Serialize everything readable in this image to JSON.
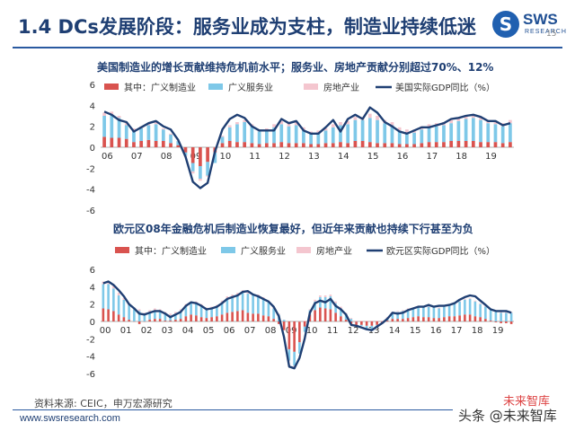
{
  "slide": {
    "title": "1.4 DCs发展阶段：服务业成为支柱，制造业持续低迷",
    "logo_text": "SWS",
    "logo_sub": "RESEARCH",
    "source": "资料来源: CEIC，申万宏源研究",
    "website": "www.swsresearch.com",
    "page_number": "15",
    "wechat_tag": "未来智库",
    "watermark": "头条 @未来智库"
  },
  "colors": {
    "manufacturing": "#d9534f",
    "services": "#7ec8e8",
    "realestate": "#f4c6cf",
    "gdp": "#1f3f73",
    "title": "#1f3f73"
  },
  "chart_data": [
    {
      "type": "bar",
      "stacked": true,
      "title": "美国制造业的增长贡献维持危机前水平；服务业、房地产贡献分别超过70%、12%",
      "x_tick_labels": [
        "06",
        "07",
        "08",
        "09",
        "10",
        "11",
        "12",
        "13",
        "14",
        "15",
        "16",
        "17",
        "18",
        "19"
      ],
      "ylim": [
        -6,
        6
      ],
      "y_ticks": [
        -6,
        -4,
        -2,
        0,
        2,
        4,
        6
      ],
      "legend_position": "top",
      "x": [
        2006.0,
        2006.25,
        2006.5,
        2006.75,
        2007.0,
        2007.25,
        2007.5,
        2007.75,
        2008.0,
        2008.25,
        2008.5,
        2008.75,
        2009.0,
        2009.25,
        2009.5,
        2009.75,
        2010.0,
        2010.25,
        2010.5,
        2010.75,
        2011.0,
        2011.25,
        2011.5,
        2011.75,
        2012.0,
        2012.25,
        2012.5,
        2012.75,
        2013.0,
        2013.25,
        2013.5,
        2013.75,
        2014.0,
        2014.25,
        2014.5,
        2014.75,
        2015.0,
        2015.25,
        2015.5,
        2015.75,
        2016.0,
        2016.25,
        2016.5,
        2016.75,
        2017.0,
        2017.25,
        2017.5,
        2017.75,
        2018.0,
        2018.25,
        2018.5,
        2018.75,
        2019.0,
        2019.25,
        2019.5,
        2019.75
      ],
      "series": [
        {
          "name": "其中：广义制造业",
          "values": [
            1.0,
            0.9,
            0.9,
            0.8,
            0.5,
            0.6,
            0.7,
            0.6,
            0.6,
            0.4,
            0.2,
            -0.5,
            -1.5,
            -1.8,
            -1.4,
            -0.5,
            0.4,
            0.6,
            0.5,
            0.5,
            0.4,
            0.3,
            0.4,
            0.4,
            0.5,
            0.4,
            0.4,
            0.4,
            0.3,
            0.3,
            0.4,
            0.4,
            0.5,
            0.4,
            0.6,
            0.6,
            0.5,
            0.4,
            0.4,
            0.4,
            0.3,
            0.3,
            0.3,
            0.4,
            0.5,
            0.5,
            0.5,
            0.6,
            0.6,
            0.6,
            0.6,
            0.5,
            0.5,
            0.5,
            0.4,
            0.5
          ]
        },
        {
          "name": "广义服务业",
          "values": [
            2.0,
            2.2,
            1.9,
            1.3,
            1.1,
            1.2,
            1.4,
            1.6,
            1.1,
            0.8,
            0.4,
            -0.3,
            -0.8,
            -1.2,
            -1.3,
            -1.0,
            0.6,
            1.3,
            1.7,
            1.9,
            1.6,
            1.2,
            1.1,
            1.5,
            1.7,
            1.6,
            1.7,
            1.2,
            1.0,
            1.1,
            1.2,
            1.5,
            1.6,
            1.8,
            2.0,
            2.0,
            2.3,
            2.2,
            1.9,
            1.7,
            1.3,
            1.1,
            1.1,
            1.3,
            1.4,
            1.5,
            1.6,
            1.7,
            1.9,
            2.1,
            2.2,
            2.1,
            1.8,
            1.7,
            1.6,
            1.8
          ]
        },
        {
          "name": "房地产业",
          "values": [
            0.3,
            0.3,
            0.2,
            0.2,
            0.2,
            0.2,
            0.2,
            0.2,
            0.1,
            0.1,
            0.0,
            -0.1,
            -0.2,
            -0.2,
            -0.1,
            0.0,
            0.1,
            0.2,
            0.2,
            0.2,
            0.2,
            0.2,
            0.3,
            0.3,
            0.3,
            0.3,
            0.3,
            0.3,
            0.2,
            0.2,
            0.2,
            0.3,
            0.3,
            0.3,
            0.3,
            0.3,
            0.4,
            0.4,
            0.3,
            0.3,
            0.3,
            0.3,
            0.3,
            0.3,
            0.3,
            0.3,
            0.3,
            0.3,
            0.3,
            0.3,
            0.3,
            0.3,
            0.3,
            0.3,
            0.3,
            0.3
          ]
        },
        {
          "name": "美国实际GDP同比（%）",
          "type": "line",
          "values": [
            3.4,
            3.1,
            2.6,
            2.4,
            1.5,
            1.9,
            2.3,
            2.5,
            2.0,
            1.7,
            0.7,
            -0.9,
            -3.3,
            -3.9,
            -3.4,
            -0.4,
            1.7,
            2.7,
            3.1,
            2.8,
            2.0,
            1.6,
            1.6,
            1.6,
            2.7,
            2.3,
            2.5,
            1.6,
            1.3,
            1.3,
            1.9,
            2.6,
            1.5,
            2.7,
            3.1,
            2.7,
            3.8,
            3.3,
            2.4,
            2.0,
            1.5,
            1.3,
            1.6,
            1.9,
            1.9,
            2.1,
            2.3,
            2.7,
            2.8,
            3.0,
            3.1,
            2.9,
            2.5,
            2.5,
            2.1,
            2.3
          ]
        }
      ]
    },
    {
      "type": "bar",
      "stacked": true,
      "title": "欧元区08年金融危机后制造业恢复最好，但近年来贡献也持续下行甚至为负",
      "x_tick_labels": [
        "00",
        "01",
        "02",
        "03",
        "04",
        "05",
        "06",
        "07",
        "08",
        "09",
        "10",
        "11",
        "12",
        "13",
        "14",
        "15",
        "16",
        "17",
        "18",
        "19"
      ],
      "ylim": [
        -6,
        6
      ],
      "y_ticks": [
        -6,
        -4,
        -2,
        0,
        2,
        4,
        6
      ],
      "legend_position": "top",
      "x": [
        2000.0,
        2000.25,
        2000.5,
        2000.75,
        2001.0,
        2001.25,
        2001.5,
        2001.75,
        2002.0,
        2002.25,
        2002.5,
        2002.75,
        2003.0,
        2003.25,
        2003.5,
        2003.75,
        2004.0,
        2004.25,
        2004.5,
        2004.75,
        2005.0,
        2005.25,
        2005.5,
        2005.75,
        2006.0,
        2006.25,
        2006.5,
        2006.75,
        2007.0,
        2007.25,
        2007.5,
        2007.75,
        2008.0,
        2008.25,
        2008.5,
        2008.75,
        2009.0,
        2009.25,
        2009.5,
        2009.75,
        2010.0,
        2010.25,
        2010.5,
        2010.75,
        2011.0,
        2011.25,
        2011.5,
        2011.75,
        2012.0,
        2012.25,
        2012.5,
        2012.75,
        2013.0,
        2013.25,
        2013.5,
        2013.75,
        2014.0,
        2014.25,
        2014.5,
        2014.75,
        2015.0,
        2015.25,
        2015.5,
        2015.75,
        2016.0,
        2016.25,
        2016.5,
        2016.75,
        2017.0,
        2017.25,
        2017.5,
        2017.75,
        2018.0,
        2018.25,
        2018.5,
        2018.75,
        2019.0,
        2019.25,
        2019.5,
        2019.75
      ],
      "series": [
        {
          "name": "其中：广义制造业",
          "values": [
            1.5,
            1.4,
            1.2,
            0.8,
            0.5,
            0.2,
            0.0,
            -0.3,
            0.0,
            0.2,
            0.3,
            0.3,
            0.1,
            0.1,
            0.2,
            0.3,
            0.6,
            0.8,
            0.7,
            0.5,
            0.4,
            0.5,
            0.6,
            0.8,
            1.0,
            1.1,
            1.2,
            1.3,
            1.0,
            0.9,
            0.9,
            0.7,
            0.6,
            0.3,
            -0.3,
            -1.0,
            -3.2,
            -3.5,
            -2.4,
            -0.6,
            0.8,
            1.3,
            1.6,
            1.5,
            1.4,
            1.0,
            0.6,
            0.2,
            -0.3,
            -0.4,
            -0.4,
            -0.5,
            -0.5,
            -0.4,
            -0.2,
            0.1,
            0.3,
            0.3,
            0.3,
            0.4,
            0.5,
            0.6,
            0.5,
            0.5,
            0.4,
            0.4,
            0.5,
            0.6,
            0.6,
            0.7,
            0.8,
            0.8,
            0.6,
            0.5,
            0.3,
            0.1,
            -0.1,
            -0.2,
            -0.2,
            -0.3
          ]
        },
        {
          "name": "广义服务业",
          "values": [
            2.8,
            2.9,
            2.6,
            2.2,
            2.0,
            1.7,
            1.4,
            1.2,
            0.8,
            0.9,
            1.0,
            0.9,
            0.8,
            0.6,
            0.7,
            0.9,
            1.2,
            1.3,
            1.4,
            1.3,
            1.0,
            1.0,
            1.1,
            1.4,
            1.7,
            1.8,
            1.9,
            2.1,
            2.2,
            2.1,
            2.0,
            1.9,
            1.6,
            1.2,
            0.8,
            0.2,
            -1.3,
            -1.6,
            -1.3,
            -0.6,
            0.5,
            1.0,
            1.2,
            1.3,
            1.5,
            1.1,
            0.9,
            0.7,
            0.3,
            0.0,
            -0.1,
            -0.3,
            -0.4,
            -0.2,
            0.0,
            0.3,
            0.7,
            0.8,
            0.9,
            1.0,
            1.0,
            1.1,
            1.2,
            1.2,
            1.2,
            1.1,
            1.2,
            1.2,
            1.4,
            1.6,
            1.7,
            1.8,
            1.7,
            1.5,
            1.4,
            1.2,
            1.1,
            1.0,
            1.0,
            1.0
          ]
        },
        {
          "name": "房地产业",
          "values": [
            0.3,
            0.3,
            0.3,
            0.3,
            0.2,
            0.2,
            0.2,
            0.2,
            0.2,
            0.2,
            0.2,
            0.2,
            0.2,
            0.2,
            0.2,
            0.2,
            0.2,
            0.2,
            0.2,
            0.2,
            0.2,
            0.2,
            0.2,
            0.2,
            0.2,
            0.2,
            0.2,
            0.2,
            0.2,
            0.2,
            0.2,
            0.2,
            0.2,
            0.1,
            0.1,
            0.0,
            -0.1,
            -0.1,
            0.0,
            0.1,
            0.1,
            0.2,
            0.2,
            0.2,
            0.2,
            0.2,
            0.2,
            0.1,
            0.1,
            0.1,
            0.1,
            0.1,
            0.1,
            0.1,
            0.1,
            0.1,
            0.1,
            0.1,
            0.1,
            0.1,
            0.1,
            0.1,
            0.1,
            0.1,
            0.1,
            0.1,
            0.1,
            0.1,
            0.1,
            0.1,
            0.1,
            0.1,
            0.1,
            0.1,
            0.1,
            0.1,
            0.1,
            0.1,
            0.1,
            0.1
          ]
        },
        {
          "name": "欧元区实际GDP同比（%）",
          "type": "line",
          "values": [
            4.4,
            4.6,
            4.2,
            3.6,
            2.9,
            2.0,
            1.5,
            0.9,
            0.8,
            1.0,
            1.2,
            1.2,
            0.9,
            0.5,
            0.8,
            1.1,
            1.8,
            2.2,
            2.1,
            1.8,
            1.4,
            1.5,
            1.7,
            2.1,
            2.6,
            2.8,
            3.0,
            3.4,
            3.5,
            3.1,
            2.9,
            2.6,
            2.3,
            1.7,
            0.6,
            -1.8,
            -5.2,
            -5.4,
            -4.2,
            -2.0,
            1.0,
            2.1,
            2.4,
            2.2,
            2.6,
            1.8,
            1.4,
            0.8,
            -0.4,
            -0.5,
            -0.7,
            -0.9,
            -1.0,
            -0.6,
            -0.2,
            0.3,
            1.0,
            0.9,
            1.0,
            1.3,
            1.5,
            1.7,
            1.7,
            1.9,
            1.7,
            1.8,
            1.8,
            1.9,
            2.1,
            2.5,
            2.8,
            3.0,
            2.9,
            2.4,
            1.9,
            1.4,
            1.2,
            1.2,
            1.2,
            1.0
          ]
        }
      ]
    }
  ]
}
